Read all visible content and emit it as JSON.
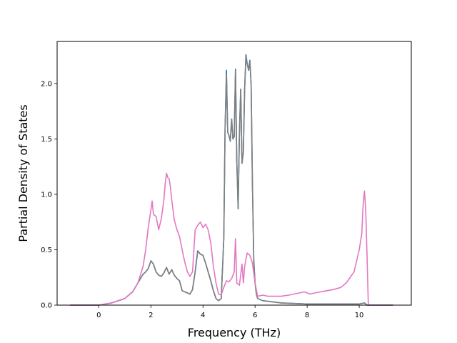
{
  "chart_data": {
    "type": "line",
    "title": "",
    "xlabel": "Frequency (THz)",
    "ylabel": "Partial Density of States",
    "xlim": [
      -1.6,
      12.0
    ],
    "ylim": [
      0.0,
      2.38
    ],
    "xticks": [
      0,
      2,
      4,
      6,
      8,
      10
    ],
    "yticks": [
      0.0,
      0.5,
      1.0,
      1.5,
      2.0
    ],
    "xtick_labels": [
      "0",
      "2",
      "4",
      "6",
      "8",
      "10"
    ],
    "ytick_labels": [
      "0.0",
      "0.5",
      "1.0",
      "1.5",
      "2.0"
    ],
    "grid": false,
    "legend": "none",
    "series": [
      {
        "color": "#1f77b4",
        "x": [
          -1.1,
          -0.5,
          0,
          0.5,
          1,
          1.3,
          1.5,
          1.7,
          1.8,
          1.9,
          2,
          2.1,
          2.2,
          2.3,
          2.4,
          2.5,
          2.6,
          2.7,
          2.8,
          2.9,
          3,
          3.1,
          3.2,
          3.3,
          3.4,
          3.5,
          3.6,
          3.7,
          3.8,
          3.9,
          4,
          4.1,
          4.2,
          4.3,
          4.4,
          4.5,
          4.6,
          4.7,
          4.8,
          4.85,
          4.9,
          4.95,
          5.0,
          5.05,
          5.1,
          5.15,
          5.2,
          5.25,
          5.3,
          5.35,
          5.4,
          5.45,
          5.5,
          5.55,
          5.6,
          5.65,
          5.7,
          5.75,
          5.8,
          5.85,
          5.9,
          5.95,
          6.0,
          6.05,
          6.1,
          6.3,
          7,
          8,
          9,
          10,
          10.2,
          10.3,
          11.3
        ],
        "y": [
          0,
          0,
          0,
          0.02,
          0.06,
          0.12,
          0.2,
          0.28,
          0.3,
          0.33,
          0.4,
          0.37,
          0.3,
          0.27,
          0.26,
          0.29,
          0.34,
          0.28,
          0.32,
          0.27,
          0.24,
          0.22,
          0.13,
          0.12,
          0.11,
          0.1,
          0.14,
          0.3,
          0.49,
          0.46,
          0.45,
          0.38,
          0.3,
          0.22,
          0.13,
          0.06,
          0.04,
          0.06,
          0.6,
          1.6,
          2.12,
          1.56,
          1.53,
          1.48,
          1.68,
          1.5,
          1.52,
          2.13,
          1.3,
          0.87,
          1.55,
          1.95,
          1.28,
          1.38,
          1.95,
          2.26,
          2.18,
          2.12,
          2.21,
          1.99,
          1.1,
          0.4,
          0.2,
          0.1,
          0.06,
          0.04,
          0.02,
          0.01,
          0.01,
          0.01,
          0.02,
          0,
          0
        ]
      },
      {
        "color": "#7f7f7f",
        "x": [
          -1.1,
          -0.5,
          0,
          0.5,
          1,
          1.3,
          1.5,
          1.7,
          1.8,
          1.9,
          2,
          2.1,
          2.2,
          2.3,
          2.4,
          2.5,
          2.6,
          2.7,
          2.8,
          2.9,
          3,
          3.1,
          3.2,
          3.3,
          3.4,
          3.5,
          3.6,
          3.7,
          3.8,
          3.9,
          4,
          4.1,
          4.2,
          4.3,
          4.4,
          4.5,
          4.6,
          4.7,
          4.8,
          4.85,
          4.9,
          4.95,
          5.0,
          5.05,
          5.1,
          5.15,
          5.2,
          5.25,
          5.3,
          5.35,
          5.4,
          5.45,
          5.5,
          5.55,
          5.6,
          5.65,
          5.7,
          5.75,
          5.8,
          5.85,
          5.9,
          5.95,
          6.0,
          6.05,
          6.1,
          6.3,
          7,
          8,
          9,
          10,
          10.2,
          10.3,
          11.3
        ],
        "y": [
          0,
          0,
          0,
          0.02,
          0.06,
          0.12,
          0.2,
          0.28,
          0.3,
          0.33,
          0.4,
          0.37,
          0.3,
          0.27,
          0.26,
          0.29,
          0.34,
          0.28,
          0.32,
          0.27,
          0.24,
          0.22,
          0.13,
          0.12,
          0.11,
          0.1,
          0.14,
          0.3,
          0.49,
          0.46,
          0.45,
          0.38,
          0.3,
          0.22,
          0.13,
          0.06,
          0.04,
          0.06,
          0.6,
          1.58,
          2.08,
          1.56,
          1.53,
          1.48,
          1.68,
          1.5,
          1.52,
          2.11,
          1.3,
          0.87,
          1.55,
          1.95,
          1.28,
          1.38,
          1.95,
          2.24,
          2.18,
          2.12,
          2.2,
          1.99,
          1.1,
          0.4,
          0.2,
          0.1,
          0.06,
          0.04,
          0.02,
          0.01,
          0.01,
          0.01,
          0.02,
          0,
          0
        ]
      },
      {
        "color": "#e377c2",
        "x": [
          -1.1,
          -0.5,
          0,
          0.5,
          1,
          1.3,
          1.5,
          1.7,
          1.8,
          1.9,
          2,
          2.05,
          2.1,
          2.2,
          2.3,
          2.4,
          2.5,
          2.55,
          2.6,
          2.65,
          2.7,
          2.75,
          2.8,
          2.9,
          3,
          3.1,
          3.2,
          3.3,
          3.4,
          3.5,
          3.6,
          3.7,
          3.8,
          3.9,
          4,
          4.1,
          4.2,
          4.3,
          4.4,
          4.5,
          4.6,
          4.7,
          4.8,
          4.9,
          5,
          5.1,
          5.2,
          5.25,
          5.3,
          5.4,
          5.5,
          5.55,
          5.6,
          5.7,
          5.8,
          5.9,
          6,
          6.1,
          6.3,
          6.5,
          7,
          7.3,
          7.5,
          7.9,
          8.1,
          8.5,
          9,
          9.3,
          9.5,
          9.8,
          10,
          10.1,
          10.15,
          10.2,
          10.25,
          10.3,
          10.35,
          11.3
        ],
        "y": [
          0,
          0,
          0,
          0.02,
          0.06,
          0.12,
          0.2,
          0.35,
          0.5,
          0.7,
          0.86,
          0.94,
          0.82,
          0.8,
          0.68,
          0.78,
          0.95,
          1.1,
          1.19,
          1.15,
          1.14,
          1.07,
          0.95,
          0.77,
          0.68,
          0.62,
          0.5,
          0.39,
          0.3,
          0.26,
          0.3,
          0.68,
          0.72,
          0.75,
          0.7,
          0.73,
          0.68,
          0.56,
          0.35,
          0.2,
          0.1,
          0.09,
          0.16,
          0.22,
          0.21,
          0.24,
          0.3,
          0.6,
          0.2,
          0.18,
          0.37,
          0.2,
          0.35,
          0.47,
          0.45,
          0.38,
          0.2,
          0.08,
          0.09,
          0.08,
          0.08,
          0.09,
          0.1,
          0.12,
          0.1,
          0.12,
          0.14,
          0.16,
          0.2,
          0.3,
          0.5,
          0.65,
          0.9,
          1.03,
          0.85,
          0.45,
          0,
          0
        ]
      }
    ]
  }
}
